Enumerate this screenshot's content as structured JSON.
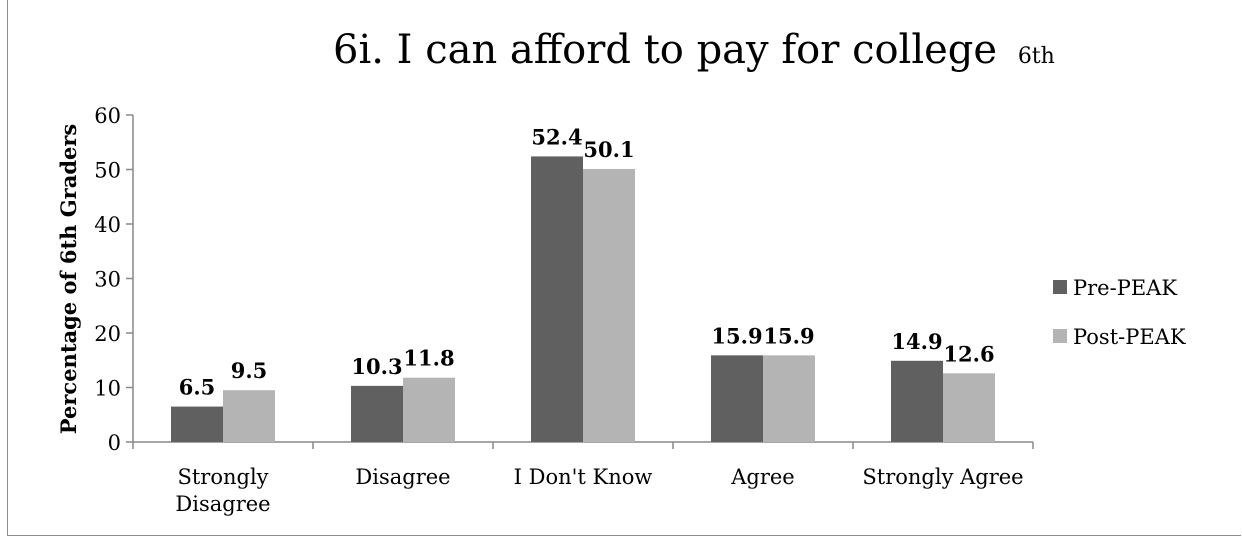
{
  "chart_data": {
    "type": "bar",
    "title": "6i. I can afford to pay for college",
    "title_suffix": "6th",
    "ylabel": "Percentage of 6th Graders",
    "xlabel": "",
    "ylim": [
      0,
      60
    ],
    "yticks": [
      0,
      10,
      20,
      30,
      40,
      50,
      60
    ],
    "categories": [
      "Strongly Disagree",
      "Disagree",
      "I Don't Know",
      "Agree",
      "Strongly Agree"
    ],
    "category_lines": [
      [
        "Strongly",
        "Disagree"
      ],
      [
        "Disagree"
      ],
      [
        "I Don't Know"
      ],
      [
        "Agree"
      ],
      [
        "Strongly Agree"
      ]
    ],
    "series": [
      {
        "name": "Pre-PEAK",
        "color": "#606060",
        "values": [
          6.5,
          10.3,
          52.4,
          15.9,
          14.9
        ]
      },
      {
        "name": "Post-PEAK",
        "color": "#b4b4b4",
        "values": [
          9.5,
          11.8,
          50.1,
          15.9,
          12.6
        ]
      }
    ],
    "data_labels": true,
    "legend_position": "right",
    "grid": false
  }
}
